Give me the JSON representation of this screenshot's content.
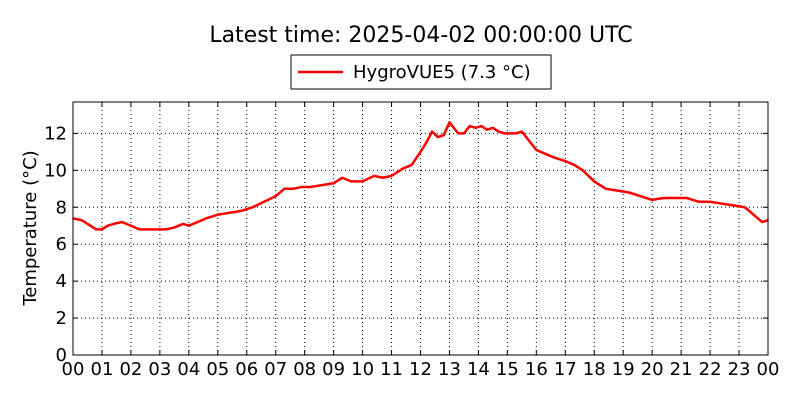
{
  "chart_data": {
    "type": "line",
    "title": "Latest time: 2025-04-02 00:00:00 UTC",
    "xlabel": "",
    "ylabel": "Temperature (°C)",
    "xlim": [
      0,
      24
    ],
    "ylim": [
      0,
      13.7
    ],
    "xticks": [
      0,
      1,
      2,
      3,
      4,
      5,
      6,
      7,
      8,
      9,
      10,
      11,
      12,
      13,
      14,
      15,
      16,
      17,
      18,
      19,
      20,
      21,
      22,
      23,
      24
    ],
    "xtick_labels": [
      "00",
      "01",
      "02",
      "03",
      "04",
      "05",
      "06",
      "07",
      "08",
      "09",
      "10",
      "11",
      "12",
      "13",
      "14",
      "15",
      "16",
      "17",
      "18",
      "19",
      "20",
      "21",
      "22",
      "23",
      "00"
    ],
    "yticks": [
      0,
      2,
      4,
      6,
      8,
      10,
      12
    ],
    "ytick_labels": [
      "0",
      "2",
      "4",
      "6",
      "8",
      "10",
      "12"
    ],
    "grid": true,
    "legend": {
      "position": "top-center",
      "entries": [
        "HygroVUE5 (7.3 °C)"
      ]
    },
    "series": [
      {
        "name": "HygroVUE5 (7.3 °C)",
        "color": "#ff0000",
        "x": [
          0,
          0.3,
          0.6,
          0.8,
          1.0,
          1.2,
          1.4,
          1.7,
          2.0,
          2.3,
          2.6,
          2.9,
          3.2,
          3.5,
          3.8,
          4.0,
          4.3,
          4.6,
          5.0,
          5.4,
          5.8,
          6.2,
          6.6,
          7.0,
          7.3,
          7.6,
          7.9,
          8.2,
          8.6,
          9.0,
          9.3,
          9.6,
          10.0,
          10.4,
          10.7,
          11.0,
          11.4,
          11.7,
          12.0,
          12.2,
          12.4,
          12.6,
          12.8,
          13.0,
          13.1,
          13.3,
          13.5,
          13.7,
          13.9,
          14.1,
          14.3,
          14.5,
          14.7,
          14.9,
          15.1,
          15.3,
          15.5,
          15.8,
          16.0,
          16.3,
          16.6,
          17.0,
          17.3,
          17.6,
          18.0,
          18.4,
          18.8,
          19.2,
          19.6,
          20.0,
          20.4,
          20.8,
          21.2,
          21.6,
          22.0,
          22.4,
          22.8,
          23.2,
          23.5,
          23.8,
          24.0
        ],
        "y": [
          7.4,
          7.3,
          7.0,
          6.8,
          6.8,
          7.0,
          7.1,
          7.2,
          7.0,
          6.8,
          6.8,
          6.8,
          6.8,
          6.9,
          7.1,
          7.0,
          7.2,
          7.4,
          7.6,
          7.7,
          7.8,
          8.0,
          8.3,
          8.6,
          9.0,
          9.0,
          9.1,
          9.1,
          9.2,
          9.3,
          9.6,
          9.4,
          9.4,
          9.7,
          9.6,
          9.7,
          10.1,
          10.3,
          11.0,
          11.5,
          12.1,
          11.8,
          11.9,
          12.6,
          12.4,
          12.0,
          12.0,
          12.4,
          12.3,
          12.4,
          12.2,
          12.3,
          12.1,
          12.0,
          12.0,
          12.0,
          12.1,
          11.5,
          11.1,
          10.9,
          10.7,
          10.5,
          10.3,
          10.0,
          9.4,
          9.0,
          8.9,
          8.8,
          8.6,
          8.4,
          8.5,
          8.5,
          8.5,
          8.3,
          8.3,
          8.2,
          8.1,
          8.0,
          7.6,
          7.2,
          7.3
        ]
      }
    ]
  }
}
